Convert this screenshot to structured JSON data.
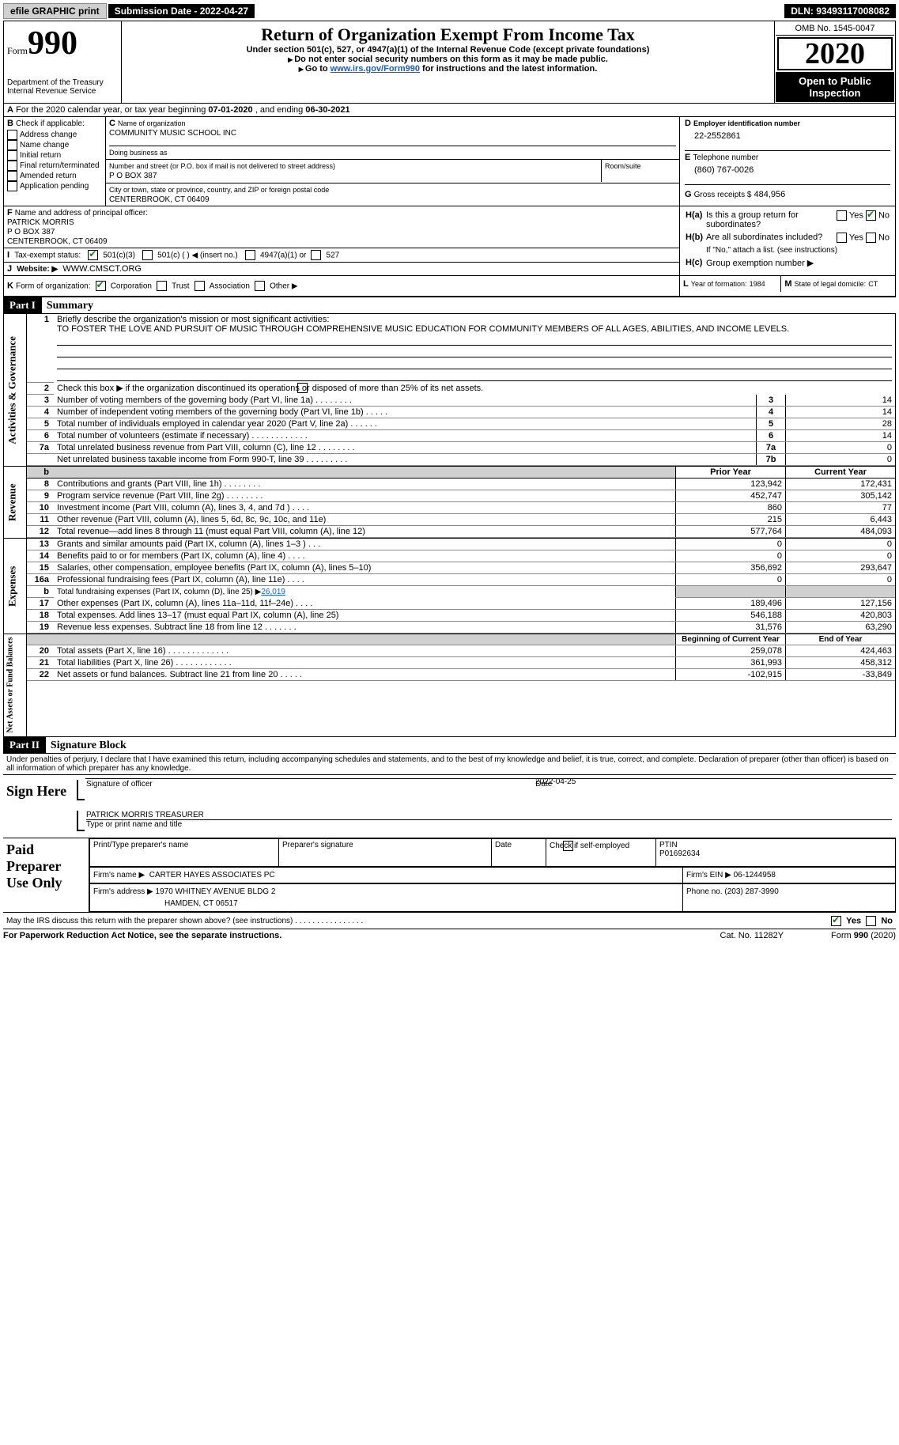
{
  "topbar": {
    "efile": "efile GRAPHIC print",
    "submission": "Submission Date - 2022-04-27",
    "dln": "DLN: 93493117008082"
  },
  "header": {
    "form_label": "Form",
    "form_num": "990",
    "dept1": "Department of the Treasury",
    "dept2": "Internal Revenue Service",
    "title": "Return of Organization Exempt From Income Tax",
    "subtitle": "Under section 501(c), 527, or 4947(a)(1) of the Internal Revenue Code (except private foundations)",
    "warn1": "Do not enter social security numbers on this form as it may be made public.",
    "warn2_pre": "Go to ",
    "warn2_link": "www.irs.gov/Form990",
    "warn2_post": " for instructions and the latest information.",
    "omb": "OMB No. 1545-0047",
    "year": "2020",
    "otp1": "Open to Public",
    "otp2": "Inspection"
  },
  "A": {
    "text_pre": "For the 2020 calendar year, or tax year beginning ",
    "begin": "07-01-2020",
    "mid": " , and ending ",
    "end": "06-30-2021"
  },
  "B": {
    "label": "Check if applicable:",
    "items": [
      "Address change",
      "Name change",
      "Initial return",
      "Final return/terminated",
      "Amended return",
      "Application pending"
    ]
  },
  "C": {
    "name_lbl": "Name of organization",
    "name": "COMMUNITY MUSIC SCHOOL INC",
    "dba_lbl": "Doing business as",
    "dba": "",
    "addr_lbl": "Number and street (or P.O. box if mail is not delivered to street address)",
    "room_lbl": "Room/suite",
    "addr": "P O BOX 387",
    "city_lbl": "City or town, state or province, country, and ZIP or foreign postal code",
    "city": "CENTERBROOK, CT  06409"
  },
  "D": {
    "lbl": "Employer identification number",
    "val": "22-2552861"
  },
  "E": {
    "lbl": "Telephone number",
    "val": "(860) 767-0026"
  },
  "G": {
    "lbl": "Gross receipts $",
    "val": "484,956"
  },
  "F": {
    "lbl": "Name and address of principal officer:",
    "name": "PATRICK MORRIS",
    "addr1": "P O BOX 387",
    "addr2": "CENTERBROOK, CT  06409"
  },
  "H": {
    "a_lbl": "Is this a group return for subordinates?",
    "b_lbl": "Are all subordinates included?",
    "b_note": "If \"No,\" attach a list. (see instructions)",
    "c_lbl": "Group exemption number ▶",
    "yes": "Yes",
    "no": "No"
  },
  "I": {
    "lbl": "Tax-exempt status:",
    "o1": "501(c)(3)",
    "o2": "501(c) (   ) ◀ (insert no.)",
    "o3": "4947(a)(1) or",
    "o4": "527"
  },
  "J": {
    "lbl": "Website: ▶",
    "val": "WWW.CMSCT.ORG"
  },
  "K": {
    "lbl": "Form of organization:",
    "o1": "Corporation",
    "o2": "Trust",
    "o3": "Association",
    "o4": "Other ▶"
  },
  "L": {
    "lbl": "Year of formation:",
    "val": "1984"
  },
  "M": {
    "lbl": "State of legal domicile:",
    "val": "CT"
  },
  "parts": {
    "p1_hdr": "Part I",
    "p1_title": "Summary",
    "p2_hdr": "Part II",
    "p2_title": "Signature Block"
  },
  "vtabs": {
    "gov": "Activities & Governance",
    "rev": "Revenue",
    "exp": "Expenses",
    "net": "Net Assets or Fund Balances"
  },
  "summary": {
    "l1_lbl": "Briefly describe the organization's mission or most significant activities:",
    "l1_text": "TO FOSTER THE LOVE AND PURSUIT OF MUSIC THROUGH COMPREHENSIVE MUSIC EDUCATION FOR COMMUNITY MEMBERS OF ALL AGES, ABILITIES, AND INCOME LEVELS.",
    "l2_lbl": "Check this box ▶       if the organization discontinued its operations or disposed of more than 25% of its net assets.",
    "rows_gov": [
      {
        "n": "3",
        "t": "Number of voting members of the governing body (Part VI, line 1a)  .    .    .    .    .    .    .    .",
        "b": "3",
        "v": "14"
      },
      {
        "n": "4",
        "t": "Number of independent voting members of the governing body (Part VI, line 1b)   .    .    .    .    .",
        "b": "4",
        "v": "14"
      },
      {
        "n": "5",
        "t": "Total number of individuals employed in calendar year 2020 (Part V, line 2a)  .    .    .    .    .    .",
        "b": "5",
        "v": "28"
      },
      {
        "n": "6",
        "t": "Total number of volunteers (estimate if necessary)   .    .    .    .    .    .    .    .    .    .    .    .",
        "b": "6",
        "v": "14"
      },
      {
        "n": "7a",
        "t": "Total unrelated business revenue from Part VIII, column (C), line 12   .    .    .    .    .    .    .    .",
        "b": "7a",
        "v": "0"
      },
      {
        "n": "",
        "t": "Net unrelated business taxable income from Form 990-T, line 39   .    .    .    .    .    .    .    .    .",
        "b": "7b",
        "v": "0"
      }
    ],
    "col_hdr": {
      "py": "Prior Year",
      "cy": "Current Year",
      "bcy": "Beginning of Current Year",
      "ey": "End of Year"
    },
    "rows_rev": [
      {
        "n": "8",
        "t": "Contributions and grants (Part VIII, line 1h)   .    .    .    .    .    .    .    .",
        "py": "123,942",
        "cy": "172,431"
      },
      {
        "n": "9",
        "t": "Program service revenue (Part VIII, line 2g)   .    .    .    .    .    .    .    .",
        "py": "452,747",
        "cy": "305,142"
      },
      {
        "n": "10",
        "t": "Investment income (Part VIII, column (A), lines 3, 4, and 7d )   .    .    .    .",
        "py": "860",
        "cy": "77"
      },
      {
        "n": "11",
        "t": "Other revenue (Part VIII, column (A), lines 5, 6d, 8c, 9c, 10c, and 11e)",
        "py": "215",
        "cy": "6,443"
      },
      {
        "n": "12",
        "t": "Total revenue—add lines 8 through 11 (must equal Part VIII, column (A), line 12)",
        "py": "577,764",
        "cy": "484,093"
      }
    ],
    "rows_exp": [
      {
        "n": "13",
        "t": "Grants and similar amounts paid (Part IX, column (A), lines 1–3 )  .    .    .",
        "py": "0",
        "cy": "0"
      },
      {
        "n": "14",
        "t": "Benefits paid to or for members (Part IX, column (A), line 4)  .    .    .    .",
        "py": "0",
        "cy": "0"
      },
      {
        "n": "15",
        "t": "Salaries, other compensation, employee benefits (Part IX, column (A), lines 5–10)",
        "py": "356,692",
        "cy": "293,647"
      },
      {
        "n": "16a",
        "t": "Professional fundraising fees (Part IX, column (A), line 11e)  .    .    .    .",
        "py": "0",
        "cy": "0"
      }
    ],
    "l16b_pre": "Total fundraising expenses (Part IX, column (D), line 25) ▶",
    "l16b_val": "26,019",
    "rows_exp2": [
      {
        "n": "17",
        "t": "Other expenses (Part IX, column (A), lines 11a–11d, 11f–24e)   .    .    .    .",
        "py": "189,496",
        "cy": "127,156"
      },
      {
        "n": "18",
        "t": "Total expenses. Add lines 13–17 (must equal Part IX, column (A), line 25)",
        "py": "546,188",
        "cy": "420,803"
      },
      {
        "n": "19",
        "t": "Revenue less expenses. Subtract line 18 from line 12  .    .    .    .    .    .    .",
        "py": "31,576",
        "cy": "63,290"
      }
    ],
    "rows_net": [
      {
        "n": "20",
        "t": "Total assets (Part X, line 16)  .    .    .    .    .    .    .    .    .    .    .    .    .",
        "py": "259,078",
        "cy": "424,463"
      },
      {
        "n": "21",
        "t": "Total liabilities (Part X, line 26)   .    .    .    .    .    .    .    .    .    .    .    .",
        "py": "361,993",
        "cy": "458,312"
      },
      {
        "n": "22",
        "t": "Net assets or fund balances. Subtract line 21 from line 20  .    .    .    .    .",
        "py": "-102,915",
        "cy": "-33,849"
      }
    ]
  },
  "sig": {
    "penalties": "Under penalties of perjury, I declare that I have examined this return, including accompanying schedules and statements, and to the best of my knowledge and belief, it is true, correct, and complete. Declaration of preparer (other than officer) is based on all information of which preparer has any knowledge.",
    "sign_here": "Sign Here",
    "sig_officer": "Signature of officer",
    "date_lbl": "Date",
    "date": "2022-04-25",
    "name_title": "PATRICK MORRIS TREASURER",
    "type_name": "Type or print name and title"
  },
  "preparer": {
    "title1": "Paid",
    "title2": "Preparer",
    "title3": "Use Only",
    "h_name": "Print/Type preparer's name",
    "h_sig": "Preparer's signature",
    "h_date": "Date",
    "h_self": "Check        if self-employed",
    "h_ptin": "PTIN",
    "ptin": "P01692634",
    "firm_name_lbl": "Firm's name    ▶",
    "firm_name": "CARTER HAYES ASSOCIATES PC",
    "firm_ein_lbl": "Firm's EIN ▶",
    "firm_ein": "06-1244958",
    "firm_addr_lbl": "Firm's address ▶",
    "firm_addr1": "1970 WHITNEY AVENUE BLDG 2",
    "firm_addr2": "HAMDEN, CT  06517",
    "phone_lbl": "Phone no.",
    "phone": "(203) 287-3990"
  },
  "bottom": {
    "discuss": "May the IRS discuss this return with the preparer shown above? (see instructions)   .    .    .    .    .    .    .    .    .    .    .    .    .    .    .    .",
    "yes": "Yes",
    "no": "No",
    "pra": "For Paperwork Reduction Act Notice, see the separate instructions.",
    "cat": "Cat. No. 11282Y",
    "formrev": "Form 990 (2020)"
  }
}
